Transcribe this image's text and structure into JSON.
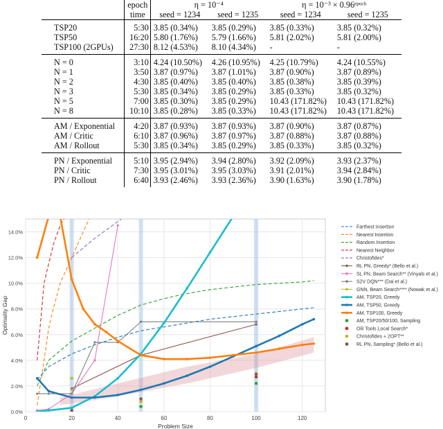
{
  "table": {
    "header": {
      "epoch": "epoch",
      "time": "time",
      "eta1": "η = 10⁻⁴",
      "eta2": "η = 10⁻³ × 0.96ᵉᵖᵒᶜʰ",
      "seed_a": "seed = 1234",
      "seed_b": "seed = 1235",
      "seed_c": "seed = 1234",
      "seed_d": "seed = 1235"
    },
    "groups": [
      {
        "rows": [
          {
            "label": "TSP20",
            "time": "5:30",
            "v1": "3.85 (0.34%)",
            "v2": "3.85 (0.29%)",
            "v3": "3.85 (0.33%)",
            "v4": "3.85 (0.32%)"
          },
          {
            "label": "TSP50",
            "time": "16:20",
            "v1": "5.80 (1.76%)",
            "v2": "5.79 (1.66%)",
            "v3": "5.81 (2.02%)",
            "v4": "5.81 (2.00%)"
          },
          {
            "label": "TSP100 (2GPUs)",
            "time": "27:30",
            "v1": "8.12 (4.53%)",
            "v2": "8.10 (4.34%)",
            "v3": "-",
            "v4": "-"
          }
        ]
      },
      {
        "rows": [
          {
            "label": "N = 0",
            "time": "3:10",
            "v1": "4.24 (10.50%)",
            "v2": "4.26 (10.95%)",
            "v3": "4.25 (10.79%)",
            "v4": "4.24 (10.55%)"
          },
          {
            "label": "N = 1",
            "time": "3:50",
            "v1": "3.87 (0.97%)",
            "v2": "3.87 (1.01%)",
            "v3": "3.87 (0.90%)",
            "v4": "3.87 (0.89%)"
          },
          {
            "label": "N = 2",
            "time": "4:30",
            "v1": "3.85 (0.40%)",
            "v2": "3.85 (0.40%)",
            "v3": "3.85 (0.38%)",
            "v4": "3.85 (0.39%)"
          },
          {
            "label": "N = 3",
            "time": "5:30",
            "v1": "3.85 (0.34%)",
            "v2": "3.85 (0.29%)",
            "v3": "3.85 (0.33%)",
            "v4": "3.85 (0.32%)"
          },
          {
            "label": "N = 5",
            "time": "7:00",
            "v1": "3.85 (0.30%)",
            "v2": "3.85 (0.29%)",
            "v3": "10.43 (171.82%)",
            "v4": "10.43 (171.82%)"
          },
          {
            "label": "N = 8",
            "time": "10:10",
            "v1": "3.85 (0.28%)",
            "v2": "3.85 (0.33%)",
            "v3": "10.43 (171.82%)",
            "v4": "10.43 (171.82%)"
          }
        ]
      },
      {
        "rows": [
          {
            "label": "AM / Exponential",
            "time": "4:20",
            "v1": "3.87 (0.93%)",
            "v2": "3.87 (0.93%)",
            "v3": "3.87 (0.90%)",
            "v4": "3.87 (0.87%)"
          },
          {
            "label": "AM / Critic",
            "time": "6:10",
            "v1": "3.87 (0.96%)",
            "v2": "3.87 (0.97%)",
            "v3": "3.87 (0.88%)",
            "v4": "3.87 (0.88%)"
          },
          {
            "label": "AM / Rollout",
            "time": "5:30",
            "v1": "3.85 (0.34%)",
            "v2": "3.85 (0.29%)",
            "v3": "3.85 (0.33%)",
            "v4": "3.85 (0.32%)"
          }
        ]
      },
      {
        "rows": [
          {
            "label": "PN / Exponential",
            "time": "5:10",
            "v1": "3.95 (2.94%)",
            "v2": "3.94 (2.80%)",
            "v3": "3.92 (2.09%)",
            "v4": "3.93 (2.37%)"
          },
          {
            "label": "PN / Critic",
            "time": "7:30",
            "v1": "3.95 (3.01%)",
            "v2": "3.95 (3.03%)",
            "v3": "3.91 (2.01%)",
            "v4": "3.94 (2.84%)"
          },
          {
            "label": "PN / Rollout",
            "time": "6:40",
            "v1": "3.93 (2.46%)",
            "v2": "3.93 (2.36%)",
            "v3": "3.90 (1.63%)",
            "v4": "3.90 (1.78%)"
          }
        ]
      }
    ]
  },
  "chart_data": {
    "type": "line",
    "xlabel": "Problem Size",
    "ylabel": "Optimality Gap",
    "xlim": [
      0,
      130
    ],
    "ylim": [
      0,
      0.15
    ],
    "xticks": [
      "0",
      "20",
      "40",
      "60",
      "80",
      "100",
      "120"
    ],
    "yticks": [
      "0.0%",
      "2.0%",
      "4.0%",
      "6.0%",
      "8.0%",
      "10.0%",
      "12.0%",
      "14.0%"
    ],
    "highlight_x": [
      20,
      50,
      100
    ],
    "series": [
      {
        "name": "Farthest Insertion",
        "style": "dashed",
        "color": "#1f77b4",
        "x": [
          5,
          10,
          20,
          30,
          40,
          50,
          60,
          70,
          80,
          90,
          100,
          110,
          120,
          125
        ],
        "y": [
          0.025,
          0.035,
          0.045,
          0.052,
          0.058,
          0.063,
          0.066,
          0.069,
          0.072,
          0.074,
          0.076,
          0.078,
          0.08,
          0.081
        ]
      },
      {
        "name": "Nearest Insertion",
        "style": "dashed",
        "color": "#ff7f0e",
        "x": [
          5,
          8,
          10,
          12,
          15,
          20,
          25,
          30
        ],
        "y": [
          0.005,
          0.04,
          0.065,
          0.08,
          0.1,
          0.12,
          0.14,
          0.16
        ]
      },
      {
        "name": "Random Insertion",
        "style": "dashed",
        "color": "#2ca02c",
        "x": [
          5,
          10,
          20,
          30,
          40,
          50,
          60,
          70,
          80,
          90,
          100,
          110,
          120,
          125
        ],
        "y": [
          0.02,
          0.04,
          0.055,
          0.065,
          0.075,
          0.083,
          0.088,
          0.092,
          0.095,
          0.097,
          0.099,
          0.1,
          0.101,
          0.102
        ]
      },
      {
        "name": "Nearest Neighbor",
        "style": "dashed",
        "color": "#d62728",
        "x": [
          5,
          8,
          12,
          15,
          20,
          22
        ],
        "y": [
          0.04,
          0.1,
          0.13,
          0.145,
          0.16,
          0.165
        ]
      },
      {
        "name": "Christofides*",
        "style": "dashed",
        "color": "#9467bd",
        "x": [
          20,
          30,
          40,
          45
        ],
        "y": [
          0.12,
          0.135,
          0.148,
          0.155
        ]
      },
      {
        "name": "RL PN, Greedy* (Bello et al.)",
        "style": "solid",
        "color": "#8c564b",
        "x": [
          20,
          50,
          100
        ],
        "y": [
          0.018,
          0.044,
          0.068
        ]
      },
      {
        "name": "SL PN, Beam Search** (Vinyals et al.)",
        "style": "solid",
        "color": "#e377c2",
        "x": [
          5,
          10,
          20,
          30,
          40
        ],
        "y": [
          0.001,
          0.002,
          0.014,
          0.04,
          0.145
        ]
      },
      {
        "name": "S2V DQN*** (Dai et al.)",
        "style": "solid",
        "color": "#7f7f7f",
        "x": [
          5,
          10,
          20,
          30,
          40,
          50,
          100
        ],
        "y": [
          0.014,
          0.014,
          0.014,
          0.054,
          0.054,
          0.07,
          0.07
        ]
      },
      {
        "name": "GNN, Beam Search**** (Nowak et al.)",
        "style": "solid",
        "color": "#bcbd22",
        "x": [
          20
        ],
        "y": [
          0.017
        ]
      },
      {
        "name": "AM, TSP20, Greedy",
        "style": "solid",
        "color": "#17becf",
        "x": [
          5,
          10,
          20,
          30,
          40,
          50,
          60,
          70,
          80,
          90
        ],
        "y": [
          0.0,
          0.001,
          0.003,
          0.012,
          0.026,
          0.045,
          0.069,
          0.096,
          0.124,
          0.152
        ]
      },
      {
        "name": "AM, TSP50, Greedy",
        "style": "solid",
        "color": "#1f77b4",
        "x": [
          5,
          10,
          20,
          30,
          40,
          50,
          60,
          70,
          80,
          90,
          100,
          110,
          120,
          125
        ],
        "y": [
          0.026,
          0.016,
          0.011,
          0.011,
          0.013,
          0.017,
          0.022,
          0.028,
          0.035,
          0.043,
          0.051,
          0.059,
          0.068,
          0.072
        ]
      },
      {
        "name": "AM, TSP100, Greedy",
        "style": "solid",
        "color": "#ff7f0e",
        "x": [
          5,
          10,
          15,
          20,
          25,
          30,
          35,
          40,
          50,
          60,
          70,
          80,
          90,
          100,
          110,
          120,
          125
        ],
        "y": [
          0.12,
          0.152,
          0.152,
          0.103,
          0.08,
          0.068,
          0.062,
          0.055,
          0.044,
          0.041,
          0.041,
          0.042,
          0.044,
          0.046,
          0.049,
          0.052,
          0.053
        ]
      },
      {
        "name": "AM, TSP20/50/100, Sampling",
        "style": "marker",
        "color": "#2ca02c",
        "x": [
          20,
          50,
          100
        ],
        "y": [
          0.0,
          0.004,
          0.022
        ]
      },
      {
        "name": "OR Tools Local Search*",
        "style": "marker",
        "color": "#d62728",
        "x": [
          20,
          50,
          100
        ],
        "y": [
          0.0,
          0.008,
          0.027
        ]
      },
      {
        "name": "Christofides + 2OPT**",
        "style": "marker",
        "color": "#bcbd22",
        "x": [
          20,
          50,
          100
        ],
        "y": [
          0.026,
          0.008,
          0.03
        ]
      },
      {
        "name": "RL PN, Sampling* (Bello et al.)",
        "style": "marker",
        "color": "#8c564b",
        "x": [
          20,
          50,
          100
        ],
        "y": [
          0.001,
          0.01,
          0.029
        ]
      }
    ]
  }
}
